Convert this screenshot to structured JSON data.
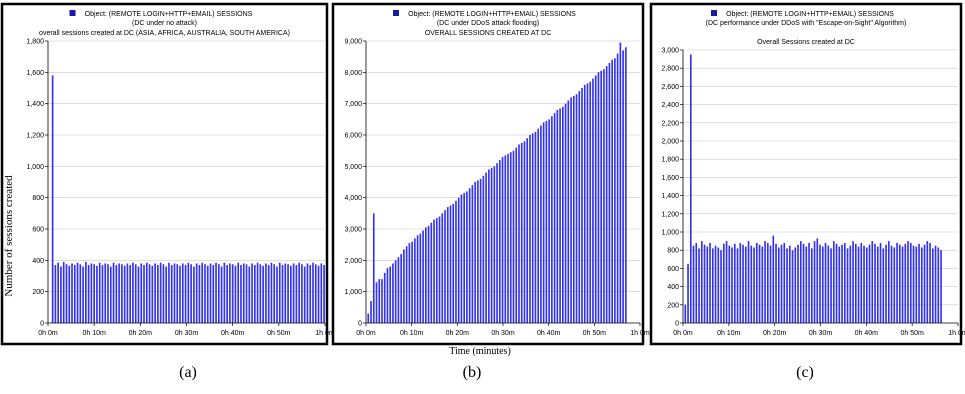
{
  "figure": {
    "ylabel": "Number of sessions created",
    "xlabel": "Time (minutes)",
    "captions": [
      "(a)",
      "(b)",
      "(c)"
    ]
  },
  "colors": {
    "bar": "#3333ee",
    "legend_square": "#1a1aa8",
    "frame": "#000000"
  },
  "chart_data": [
    {
      "type": "bar",
      "legend": "Object: (REMOTE LOGIN+HTTP+EMAIL) SESSIONS",
      "subtitle": "(DC under no attack)",
      "title": "overall sessions created at DC (ASIA, AFRICA, AUSTRALIA, SOUTH AMERICA)",
      "ylim": [
        0,
        1800
      ],
      "yticks": [
        0,
        200,
        400,
        600,
        800,
        1000,
        1200,
        1400,
        1600,
        1800
      ],
      "ytick_labels": [
        "0",
        "200",
        "400",
        "600",
        "800",
        "1,000",
        "1,200",
        "1,400",
        "1,600",
        "1,800"
      ],
      "xlim": [
        0,
        60
      ],
      "xticks": [
        0,
        10,
        20,
        30,
        40,
        50,
        60
      ],
      "xtick_labels": [
        "0h 0m",
        "0h 10m",
        "0h 20m",
        "0h 30m",
        "0h 40m",
        "0h 50m",
        "1h 0m"
      ],
      "x_start": 1,
      "x_step": 0.6,
      "values": [
        1580,
        370,
        385,
        360,
        390,
        375,
        365,
        380,
        370,
        385,
        375,
        360,
        390,
        370,
        380,
        375,
        365,
        385,
        370,
        380,
        375,
        360,
        385,
        370,
        380,
        375,
        365,
        380,
        370,
        385,
        375,
        360,
        380,
        370,
        385,
        375,
        365,
        380,
        370,
        385,
        375,
        360,
        385,
        370,
        380,
        375,
        365,
        380,
        370,
        385,
        375,
        360,
        380,
        370,
        385,
        375,
        365,
        380,
        370,
        385,
        375,
        360,
        385,
        370,
        380,
        375,
        365,
        385,
        370,
        380,
        375,
        360,
        380,
        370,
        385,
        375,
        365,
        380,
        370,
        385,
        375,
        360,
        385,
        370,
        380,
        375,
        365,
        380,
        370,
        385,
        375,
        360,
        380,
        370,
        385,
        375,
        365,
        380,
        370
      ]
    },
    {
      "type": "bar",
      "legend": "Object: (REMOTE LOGIN+HTTP+EMAIL) SESSIONS",
      "subtitle": "(DC under DDoS attack flooding)",
      "title": "OVERALL SESSIONS CREATED AT DC",
      "ylim": [
        0,
        9000
      ],
      "yticks": [
        0,
        1000,
        2000,
        3000,
        4000,
        5000,
        6000,
        7000,
        8000,
        9000
      ],
      "ytick_labels": [
        "0",
        "1,000",
        "2,000",
        "3,000",
        "4,000",
        "5,000",
        "6,000",
        "7,000",
        "8,000",
        "9,000"
      ],
      "xlim": [
        0,
        60
      ],
      "xticks": [
        0,
        10,
        20,
        30,
        40,
        50,
        60
      ],
      "xtick_labels": [
        "0h 0m",
        "0h 10m",
        "0h 20m",
        "0h 30m",
        "0h 40m",
        "0h 50m",
        "1h 0m"
      ],
      "x_start": 0.5,
      "x_step": 0.6,
      "values": [
        300,
        700,
        3500,
        1300,
        1400,
        1400,
        1600,
        1750,
        1800,
        1900,
        2000,
        2100,
        2200,
        2350,
        2450,
        2550,
        2600,
        2700,
        2800,
        2850,
        2950,
        3050,
        3100,
        3200,
        3300,
        3350,
        3400,
        3500,
        3600,
        3700,
        3750,
        3800,
        3900,
        4000,
        4100,
        4150,
        4200,
        4300,
        4400,
        4500,
        4550,
        4600,
        4700,
        4800,
        4900,
        4950,
        5000,
        5100,
        5200,
        5300,
        5350,
        5400,
        5450,
        5500,
        5600,
        5700,
        5750,
        5800,
        5900,
        6000,
        6050,
        6100,
        6200,
        6300,
        6400,
        6450,
        6500,
        6600,
        6700,
        6800,
        6850,
        6900,
        7000,
        7100,
        7200,
        7250,
        7300,
        7400,
        7500,
        7600,
        7650,
        7700,
        7800,
        7900,
        8000,
        8050,
        8100,
        8200,
        8300,
        8400,
        8450,
        8600,
        8950,
        8700,
        8800
      ]
    },
    {
      "type": "bar",
      "legend": "Object: (REMOTE LOGIN+HTTP+EMAIL) SESSIONS",
      "subtitle": "(DC performance under DDoS with \"Escape-on-Sight\" Algorithm)",
      "title": "Overall Sessions created at DC",
      "ylim": [
        0,
        3000
      ],
      "yticks": [
        0,
        200,
        400,
        600,
        800,
        1000,
        1200,
        1400,
        1600,
        1800,
        2000,
        2200,
        2400,
        2600,
        2800,
        3000
      ],
      "ytick_labels": [
        "0",
        "200",
        "400",
        "600",
        "800",
        "1,000",
        "1,200",
        "1,400",
        "1,600",
        "1,800",
        "2,000",
        "2,200",
        "2,400",
        "2,600",
        "2,800",
        "3,000"
      ],
      "xlim": [
        0,
        60
      ],
      "xticks": [
        0,
        10,
        20,
        30,
        40,
        50,
        60
      ],
      "xtick_labels": [
        "0h 0m",
        "0h 10m",
        "0h 20m",
        "0h 30m",
        "0h 40m",
        "0h 50m",
        "1h 0m"
      ],
      "x_start": 0.5,
      "x_step": 0.6,
      "values": [
        200,
        650,
        2950,
        850,
        880,
        820,
        900,
        860,
        840,
        880,
        820,
        850,
        830,
        800,
        870,
        900,
        850,
        830,
        870,
        820,
        880,
        860,
        840,
        900,
        850,
        830,
        880,
        860,
        840,
        900,
        880,
        850,
        960,
        870,
        830,
        860,
        880,
        820,
        850,
        800,
        830,
        860,
        900,
        870,
        840,
        880,
        820,
        900,
        930,
        860,
        840,
        880,
        850,
        820,
        900,
        870,
        840,
        860,
        880,
        820,
        850,
        900,
        870,
        840,
        880,
        850,
        830,
        860,
        900,
        870,
        840,
        880,
        820,
        860,
        900,
        850,
        830,
        880,
        860,
        840,
        870,
        900,
        880,
        850,
        840,
        870,
        830,
        860,
        900,
        880,
        820,
        850,
        830,
        800
      ]
    }
  ]
}
